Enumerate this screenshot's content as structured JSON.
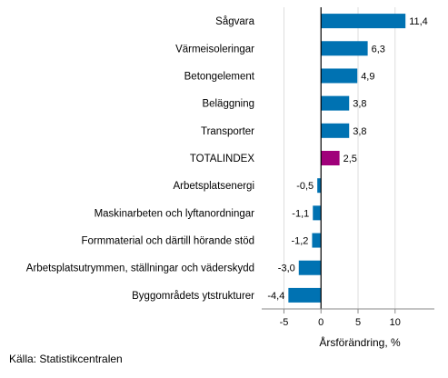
{
  "chart_data": {
    "type": "bar",
    "orientation": "horizontal",
    "categories": [
      "Sågvara",
      "Värmeisoleringar",
      "Betongelement",
      "Beläggning",
      "Transporter",
      "TOTALINDEX",
      "Arbetsplatsenergi",
      "Maskinarbeten och lyftanordningar",
      "Formmaterial och därtill hörande stöd",
      "Arbetsplatsutrymmen, ställningar och väderskydd",
      "Byggområdets ytstrukturer"
    ],
    "values": [
      11.4,
      6.3,
      4.9,
      3.8,
      3.8,
      2.5,
      -0.5,
      -1.1,
      -1.2,
      -3.0,
      -4.4
    ],
    "value_labels": [
      "11,4",
      "6,3",
      "4,9",
      "3,8",
      "3,8",
      "2,5",
      "-0,5",
      "-1,1",
      "-1,2",
      "-3,0",
      "-4,4"
    ],
    "highlight": "TOTALINDEX",
    "xlabel": "Årsförändring, %",
    "xticks": [
      -5,
      0,
      5,
      10
    ],
    "xtick_labels": [
      "-5",
      "0",
      "5",
      "10"
    ],
    "xlim": [
      -8,
      15.3
    ],
    "grid": true,
    "colors": {
      "bar": "#0072B2",
      "highlight": "#A0007A",
      "zero_line": "#000000",
      "grid": "#DDDDDD"
    }
  },
  "source": "Källa: Statistikcentralen"
}
